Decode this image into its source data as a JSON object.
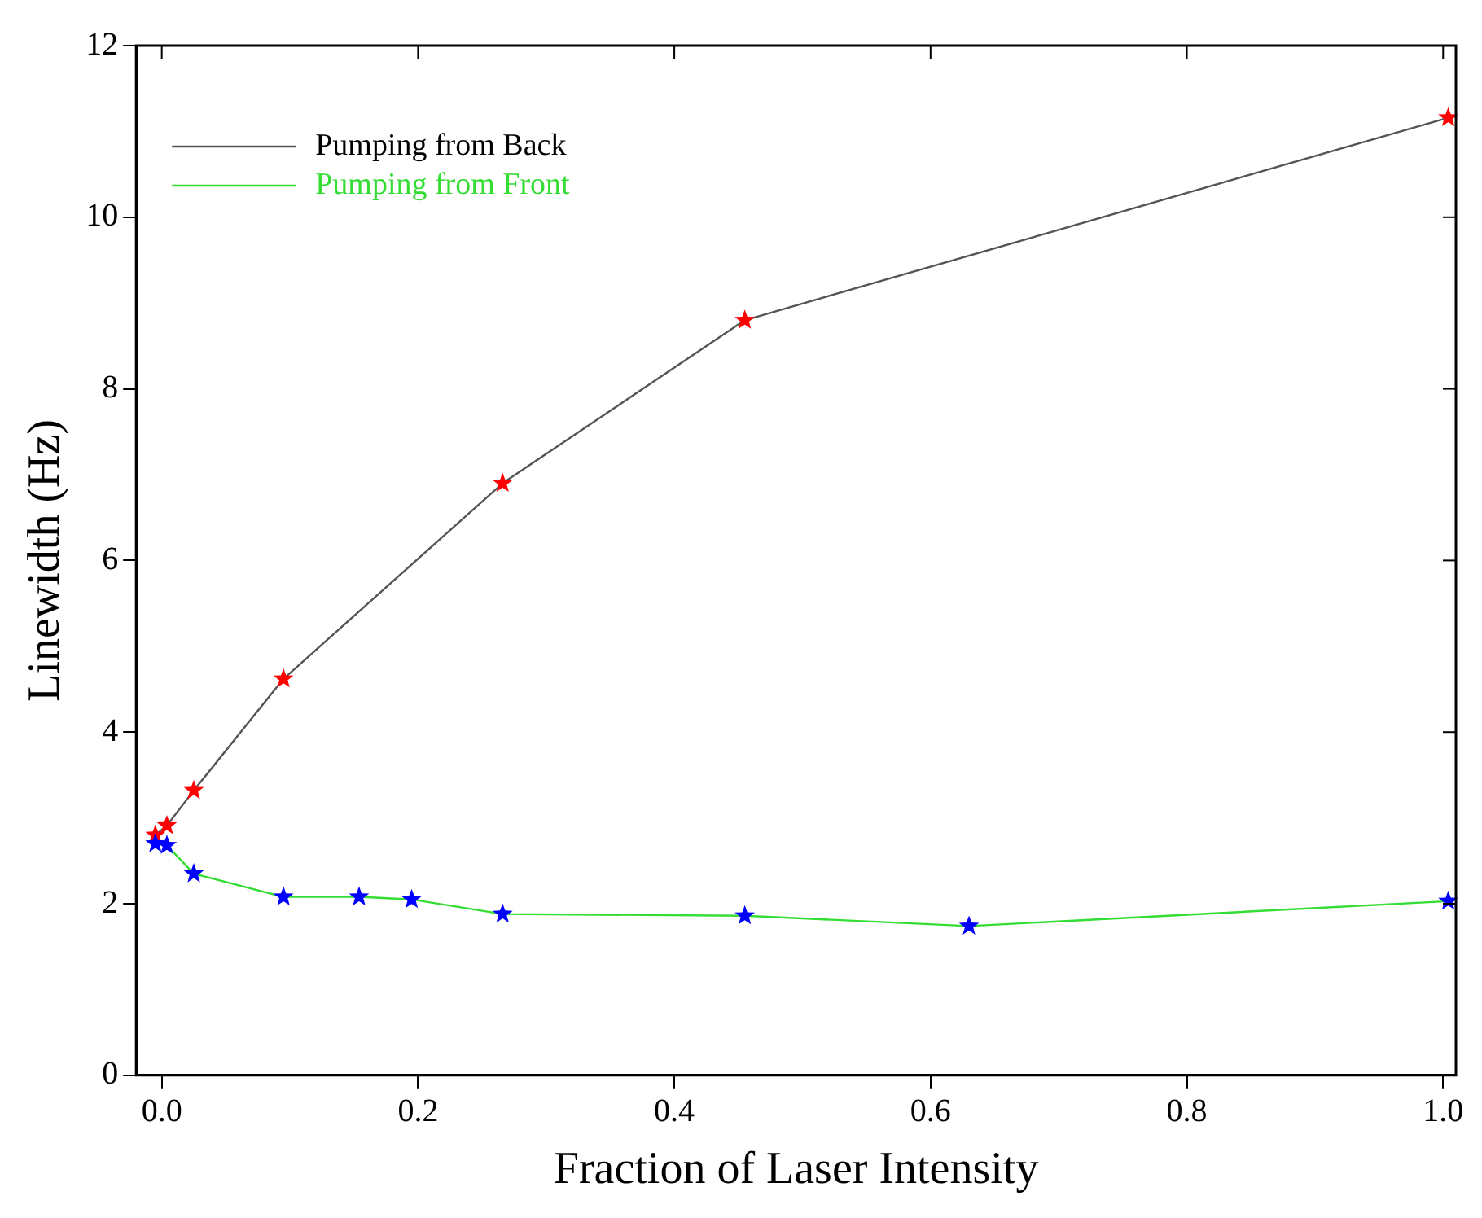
{
  "chart_data": {
    "type": "line",
    "xlabel": "Fraction of Laser Intensity",
    "ylabel": "Linewidth (Hz)",
    "xlim": [
      -0.02,
      1.01
    ],
    "ylim": [
      0,
      12
    ],
    "xticks": [
      {
        "value": 0,
        "label": "0.0"
      },
      {
        "value": 0.2,
        "label": "0.2"
      },
      {
        "value": 0.4,
        "label": "0.4"
      },
      {
        "value": 0.6,
        "label": "0.6"
      },
      {
        "value": 0.8,
        "label": "0.8"
      },
      {
        "value": 1,
        "label": "1.0"
      }
    ],
    "yticks": [
      0,
      2,
      4,
      6,
      8,
      10,
      12
    ],
    "grid": false,
    "legend": "top left",
    "marker": "star",
    "line_style": "solid",
    "series": [
      {
        "name": "Pumping from Back",
        "color": "#555555",
        "colors": [
          "#ff0000",
          "#ff0000",
          "#ff0000",
          "#ff0000",
          "#ff0000",
          "#ff0000",
          "#ff0000"
        ],
        "x": [
          -0.005,
          0.004,
          0.025,
          0.095,
          0.266,
          0.455,
          1.004
        ],
        "values": [
          2.8,
          2.91,
          3.32,
          4.62,
          6.9,
          8.8,
          11.16
        ]
      },
      {
        "name": "Pumping from Front",
        "color": "#33dd33",
        "colors": [
          "#0000ff",
          "#0000ff",
          "#0000ff",
          "#0000ff",
          "#0000ff",
          "#0000ff",
          "#0000ff",
          "#0000ff",
          "#0000ff",
          "#0000ff"
        ],
        "x": [
          -0.005,
          0.004,
          0.025,
          0.095,
          0.154,
          0.195,
          0.266,
          0.455,
          0.63,
          1.004
        ],
        "values": [
          2.7,
          2.68,
          2.35,
          2.08,
          2.08,
          2.05,
          1.88,
          1.86,
          1.74,
          2.03
        ]
      }
    ]
  }
}
